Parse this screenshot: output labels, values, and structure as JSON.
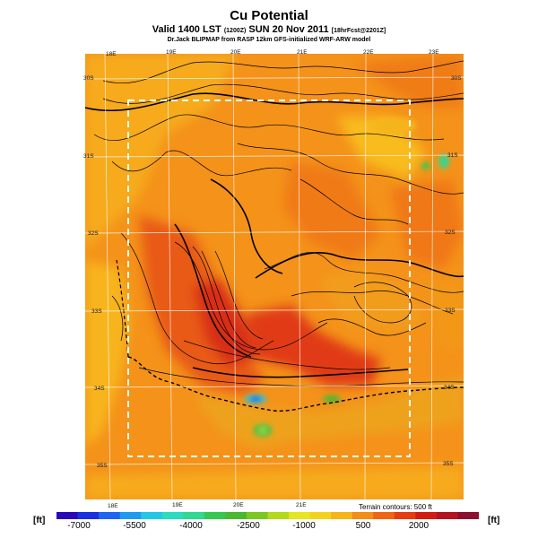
{
  "header": {
    "title": "Cu Potential",
    "subtitle_main": "Valid 1400 LST",
    "subtitle_small": "(1200Z)",
    "subtitle_date": "SUN 20 Nov 2011",
    "subtitle_fcst": "[18hrFcst@2201Z]",
    "credit": "Dr.Jack BLIPMAP from RASP 12km GFS-initialized WRF-ARW model"
  },
  "map": {
    "top_lon_labels": [
      "18E",
      "19E",
      "20E",
      "21E",
      "22E",
      "23E"
    ],
    "bottom_lon_labels": [
      "18E",
      "19E",
      "20E",
      "21E"
    ],
    "left_lat_labels": [
      "30S",
      "31S",
      "32S",
      "33S",
      "34S",
      "35S"
    ],
    "right_lat_labels": [
      "30S",
      "31S",
      "32S",
      "33S",
      "34S",
      "35S"
    ]
  },
  "footer": {
    "terrain_note": "Terrain contours: 500 ft",
    "unit_left": "[ft]",
    "unit_right": "[ft]",
    "scale_labels": [
      "-7000",
      "-5500",
      "-4000",
      "-2500",
      "-1000",
      "500",
      "2000"
    ],
    "colors": [
      "#2a0ab8",
      "#1a2fe0",
      "#1e64f0",
      "#1e9af0",
      "#22c8e6",
      "#2adcc0",
      "#30d890",
      "#36c850",
      "#4ab830",
      "#7ac820",
      "#b4d81c",
      "#e6e61e",
      "#f4d21c",
      "#f6b41a",
      "#f48c18",
      "#f06414",
      "#e63c12",
      "#d21e10",
      "#b41420",
      "#8c1030"
    ]
  }
}
